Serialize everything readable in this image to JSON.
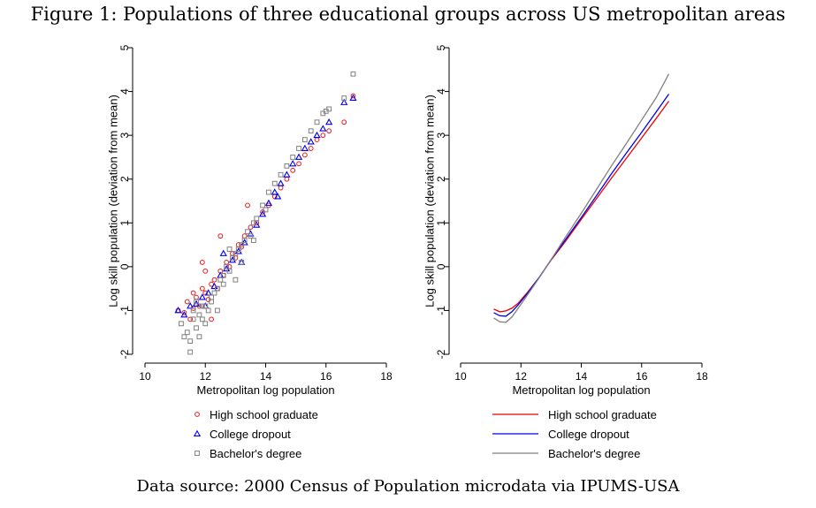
{
  "figure": {
    "title": "Figure 1: Populations of three educational groups across US metropolitan areas",
    "source": "Data source: 2000 Census of Population microdata via IPUMS-USA"
  },
  "chart_data": [
    {
      "type": "scatter",
      "title": "",
      "xlabel": "Metropolitan log population",
      "ylabel": "Log skill population (deviation from mean)",
      "xlim": [
        10,
        18
      ],
      "ylim": [
        -2,
        5
      ],
      "xticks": [
        "10",
        "12",
        "14",
        "16",
        "18"
      ],
      "yticks": [
        "-2",
        "-1",
        "0",
        "1",
        "2",
        "3",
        "4",
        "5"
      ],
      "legend_position": "bottom",
      "series": [
        {
          "name": "High school graduate",
          "marker": "circle",
          "color": "#e41a1c",
          "x": [
            11.1,
            11.3,
            11.4,
            11.5,
            11.6,
            11.7,
            11.8,
            11.9,
            12.0,
            12.1,
            12.2,
            12.3,
            12.4,
            12.5,
            12.6,
            12.7,
            12.8,
            12.9,
            13.0,
            13.1,
            13.2,
            13.3,
            13.5,
            13.7,
            13.9,
            14.1,
            14.3,
            14.5,
            14.7,
            14.9,
            15.1,
            15.3,
            15.5,
            15.7,
            15.9,
            16.1,
            16.6,
            16.9,
            11.9,
            12.5,
            12.2,
            13.4,
            12.0,
            11.6
          ],
          "y": [
            -1.0,
            -1.05,
            -0.8,
            -1.2,
            -0.95,
            -0.7,
            -0.9,
            -0.5,
            -0.6,
            -0.75,
            -0.4,
            -0.3,
            -0.5,
            -0.1,
            -0.2,
            0.1,
            0.0,
            0.3,
            0.2,
            0.5,
            0.45,
            0.7,
            0.9,
            1.0,
            1.25,
            1.4,
            1.6,
            1.8,
            2.0,
            2.2,
            2.35,
            2.55,
            2.7,
            2.9,
            3.0,
            3.1,
            3.3,
            3.9,
            0.1,
            0.7,
            -1.2,
            1.4,
            -0.1,
            -0.6
          ]
        },
        {
          "name": "College dropout",
          "marker": "triangle",
          "color": "#0000ee",
          "x": [
            11.1,
            11.3,
            11.5,
            11.7,
            11.9,
            12.1,
            12.3,
            12.5,
            12.7,
            12.9,
            13.1,
            13.3,
            13.5,
            13.7,
            13.9,
            14.1,
            14.3,
            14.5,
            14.7,
            14.9,
            15.1,
            15.3,
            15.5,
            15.7,
            15.9,
            16.1,
            16.6,
            16.9,
            12.0,
            12.6,
            13.2,
            14.4
          ],
          "y": [
            -1.0,
            -1.1,
            -0.9,
            -0.85,
            -0.7,
            -0.6,
            -0.45,
            -0.2,
            -0.05,
            0.15,
            0.35,
            0.55,
            0.75,
            0.95,
            1.2,
            1.45,
            1.7,
            1.9,
            2.1,
            2.35,
            2.5,
            2.7,
            2.85,
            3.0,
            3.15,
            3.3,
            3.75,
            3.85,
            -0.9,
            0.3,
            0.1,
            1.6
          ]
        },
        {
          "name": "Bachelor's degree",
          "marker": "square",
          "color": "#808080",
          "x": [
            11.2,
            11.3,
            11.4,
            11.5,
            11.6,
            11.7,
            11.8,
            11.9,
            12.0,
            12.1,
            12.2,
            12.3,
            12.4,
            12.5,
            12.6,
            12.7,
            12.8,
            12.9,
            13.0,
            13.1,
            13.2,
            13.3,
            13.4,
            13.5,
            13.6,
            13.7,
            13.9,
            14.1,
            14.3,
            14.5,
            14.7,
            14.9,
            15.1,
            15.3,
            15.5,
            15.7,
            15.9,
            16.0,
            16.1,
            16.6,
            16.9,
            11.5,
            11.6,
            11.7,
            11.8,
            11.9,
            12.0,
            12.2,
            12.4,
            12.6,
            12.8,
            13.0,
            13.2,
            13.6,
            14.0
          ],
          "y": [
            -1.3,
            -1.6,
            -1.5,
            -1.7,
            -1.2,
            -1.4,
            -1.1,
            -0.9,
            -1.3,
            -1.0,
            -0.8,
            -0.6,
            -0.5,
            -0.3,
            -0.4,
            0.0,
            -0.1,
            0.2,
            0.3,
            0.4,
            0.5,
            0.6,
            0.8,
            0.7,
            1.0,
            1.1,
            1.4,
            1.7,
            1.9,
            2.1,
            2.3,
            2.5,
            2.7,
            2.9,
            3.1,
            3.3,
            3.5,
            3.55,
            3.6,
            3.85,
            4.4,
            -1.95,
            -1.0,
            -0.8,
            -1.6,
            -1.2,
            -0.9,
            -0.7,
            -1.0,
            -0.2,
            0.4,
            -0.3,
            0.1,
            0.6,
            1.3
          ]
        }
      ]
    },
    {
      "type": "line",
      "title": "",
      "xlabel": "Metropolitan log population",
      "ylabel": "Log skill population (deviation from mean)",
      "xlim": [
        10,
        18
      ],
      "ylim": [
        -2,
        5
      ],
      "xticks": [
        "10",
        "12",
        "14",
        "16",
        "18"
      ],
      "yticks": [
        "-2",
        "-1",
        "0",
        "1",
        "2",
        "3",
        "4",
        "5"
      ],
      "legend_position": "bottom",
      "series": [
        {
          "name": "High school graduate",
          "color": "#ee0000",
          "x": [
            11.1,
            11.3,
            11.5,
            11.7,
            11.9,
            12.2,
            12.6,
            13.0,
            13.5,
            14.0,
            14.5,
            15.0,
            15.5,
            16.0,
            16.5,
            16.9
          ],
          "y": [
            -0.97,
            -1.03,
            -1.01,
            -0.95,
            -0.84,
            -0.6,
            -0.25,
            0.15,
            0.6,
            1.08,
            1.55,
            2.02,
            2.48,
            2.94,
            3.4,
            3.78
          ]
        },
        {
          "name": "College dropout",
          "color": "#0000ee",
          "x": [
            11.1,
            11.3,
            11.5,
            11.7,
            11.9,
            12.2,
            12.6,
            13.0,
            13.5,
            14.0,
            14.5,
            15.0,
            15.5,
            16.0,
            16.5,
            16.9
          ],
          "y": [
            -1.05,
            -1.12,
            -1.13,
            -1.03,
            -0.88,
            -0.62,
            -0.25,
            0.16,
            0.64,
            1.12,
            1.62,
            2.12,
            2.6,
            3.07,
            3.55,
            3.94
          ]
        },
        {
          "name": "Bachelor's degree",
          "color": "#808080",
          "x": [
            11.1,
            11.3,
            11.5,
            11.7,
            11.9,
            12.2,
            12.6,
            13.0,
            13.5,
            14.0,
            14.5,
            15.0,
            15.5,
            16.0,
            16.5,
            16.9
          ],
          "y": [
            -1.17,
            -1.26,
            -1.27,
            -1.15,
            -0.96,
            -0.66,
            -0.26,
            0.16,
            0.7,
            1.22,
            1.76,
            2.3,
            2.82,
            3.35,
            3.88,
            4.4
          ]
        }
      ]
    }
  ]
}
